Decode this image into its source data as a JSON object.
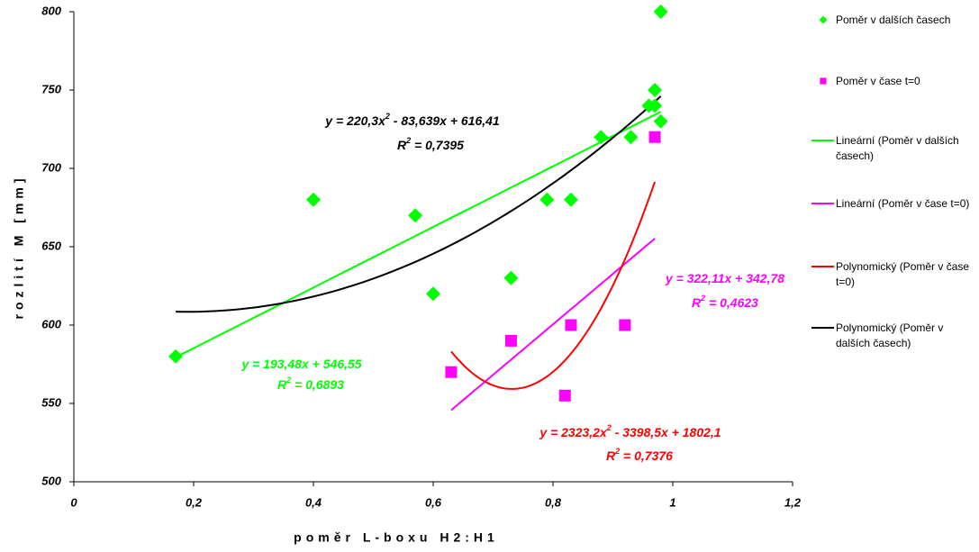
{
  "chart_data": {
    "type": "scatter",
    "x_label": "poměr L-boxu H2:H1",
    "y_label": "rozlití M [mm]",
    "xlim": [
      0,
      1.2
    ],
    "ylim": [
      500,
      800
    ],
    "xticks": [
      0,
      {
        "value": 0.2,
        "label": "0,2"
      },
      {
        "value": 0.4,
        "label": "0,4"
      },
      {
        "value": 0.6,
        "label": "0,6"
      },
      {
        "value": 0.8,
        "label": "0,8"
      },
      1,
      {
        "value": 1.2,
        "label": "1,2"
      }
    ],
    "yticks": [
      500,
      550,
      600,
      650,
      700,
      750,
      800
    ],
    "series": [
      {
        "name": "Poměr v dalších časech",
        "color": "#00ff00",
        "marker": "diamond",
        "x": [
          0.17,
          0.4,
          0.57,
          0.6,
          0.73,
          0.79,
          0.83,
          0.88,
          0.93,
          0.96,
          0.97,
          0.97,
          0.98,
          0.98
        ],
        "values": [
          580,
          680,
          670,
          620,
          630,
          680,
          680,
          720,
          720,
          740,
          750,
          740,
          800,
          730
        ]
      },
      {
        "name": "Poměr v čase t=0",
        "color": "#ff00ff",
        "marker": "square",
        "x": [
          0.63,
          0.73,
          0.82,
          0.83,
          0.92,
          0.97
        ],
        "values": [
          570,
          590,
          555,
          600,
          600,
          720
        ]
      }
    ],
    "trendlines": [
      {
        "name": "Lineární (Poměr v dalších časech)",
        "color": "#00ff00",
        "coefficients": [
          193.48,
          546.55
        ],
        "x_range": [
          0.17,
          0.98
        ],
        "equation": [
          "y = 193,48x + 546,55"
        ],
        "r2": [
          "R",
          "2",
          " = 0,6893"
        ]
      },
      {
        "name": "Lineární (Poměr v čase t=0)",
        "color": "#ff00ff",
        "coefficients": [
          322.11,
          342.78
        ],
        "x_range": [
          0.63,
          0.97
        ],
        "equation": [
          "y = 322,11x + 342,78"
        ],
        "r2": [
          "R",
          "2",
          " = 0,4623"
        ]
      },
      {
        "name": "Polynomický (Poměr v čase t=0)",
        "color": "#ff0000",
        "coefficients": [
          2323.2,
          -3398.5,
          1802.1
        ],
        "x_range": [
          0.63,
          0.97
        ],
        "equation": [
          "y = 2323,2x",
          "2",
          " - 3398,5x + 1802,1"
        ],
        "r2": [
          "R",
          "2",
          " = 0,7376"
        ]
      },
      {
        "name": "Polynomický (Poměr v dalších časech)",
        "color": "#000000",
        "coefficients": [
          220.3,
          -83.639,
          616.41
        ],
        "x_range": [
          0.17,
          0.98
        ],
        "equation": [
          "y = 220,3x",
          "2",
          " - 83,639x + 616,41"
        ],
        "r2": [
          "R",
          "2",
          " = 0,7395"
        ]
      }
    ]
  }
}
